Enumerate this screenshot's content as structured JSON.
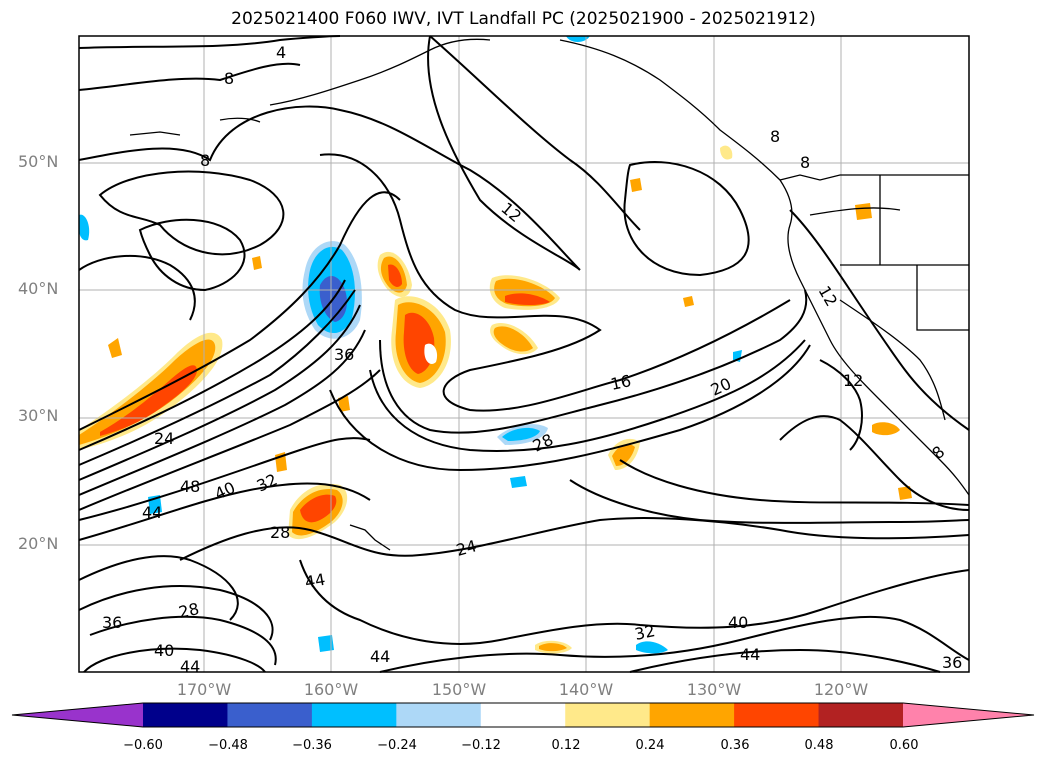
{
  "title": "2025021400 F060 IWV, IVT Landfall PC (2025021900 - 2025021912)",
  "lat_labels": [
    "50°N",
    "40°N",
    "30°N",
    "20°N"
  ],
  "lon_labels": [
    "170°W",
    "160°W",
    "150°W",
    "140°W",
    "130°W",
    "120°W"
  ],
  "colorbar": {
    "ticks": [
      "−0.60",
      "−0.48",
      "−0.36",
      "−0.24",
      "−0.12",
      "0.12",
      "0.24",
      "0.36",
      "0.48",
      "0.60"
    ],
    "colors": [
      "#9933cc",
      "#00008b",
      "#3a5fcd",
      "#00bfff",
      "#add8f7",
      "#ffffff",
      "#ffe98a",
      "#ffa500",
      "#ff4500",
      "#b22222",
      "#ff82ab"
    ]
  },
  "contour_labels": [
    {
      "text": "4"
    },
    {
      "text": "8"
    },
    {
      "text": "8"
    },
    {
      "text": "12"
    },
    {
      "text": "8"
    },
    {
      "text": "8"
    },
    {
      "text": "12"
    },
    {
      "text": "36"
    },
    {
      "text": "16"
    },
    {
      "text": "20"
    },
    {
      "text": "12"
    },
    {
      "text": "24"
    },
    {
      "text": "28"
    },
    {
      "text": "48"
    },
    {
      "text": "40"
    },
    {
      "text": "32"
    },
    {
      "text": "44"
    },
    {
      "text": "28"
    },
    {
      "text": "24"
    },
    {
      "text": "44"
    },
    {
      "text": "28"
    },
    {
      "text": "36"
    },
    {
      "text": "40"
    },
    {
      "text": "44"
    },
    {
      "text": "44"
    },
    {
      "text": "32"
    },
    {
      "text": "40"
    },
    {
      "text": "44"
    },
    {
      "text": "36"
    },
    {
      "text": "8"
    }
  ]
}
